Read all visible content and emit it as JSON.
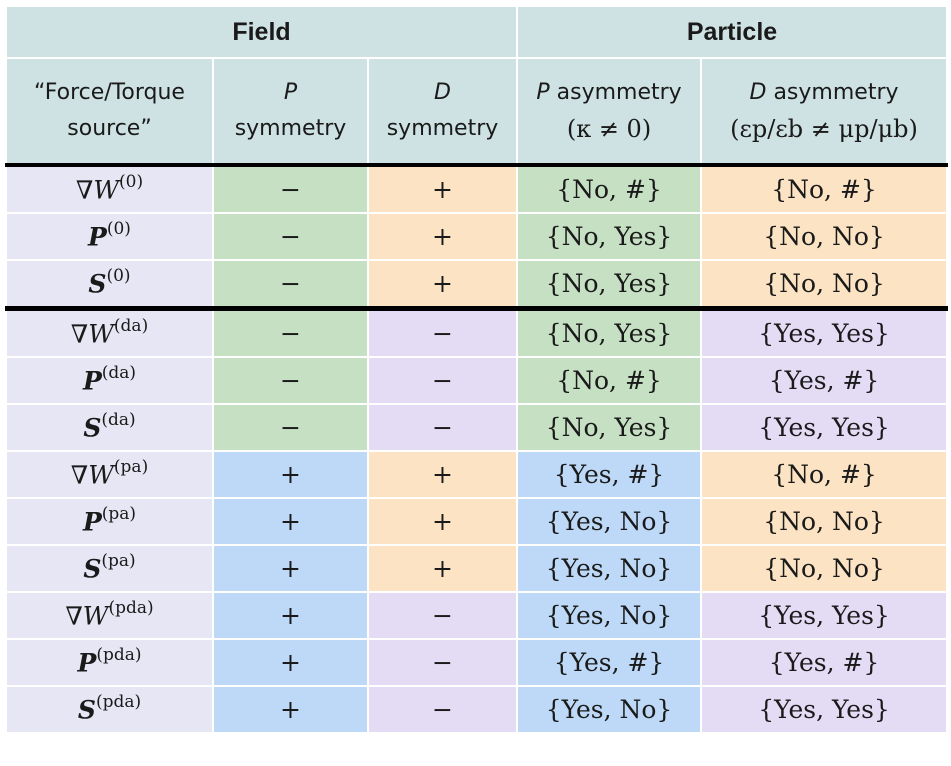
{
  "header_top": {
    "field": "Field",
    "particle": "Particle"
  },
  "header_sub": {
    "source_line1": "“Force/Torque",
    "source_line2": "source”",
    "p_sym_letter": "P",
    "p_sym_word": "symmetry",
    "d_sym_letter": "D",
    "d_sym_word": "symmetry",
    "p_asym_letter": "P",
    "p_asym_word": "asymmetry",
    "p_asym_cond": "(κ ≠ 0)",
    "d_asym_letter": "D",
    "d_asym_word": "asymmetry",
    "d_asym_cond": "(εp/εb ≠ μp/μb)"
  },
  "colors": {
    "header": "#cfe2e3",
    "source_col": "#e6e6f4",
    "green": "#c6e0c4",
    "orange": "#fbe3c3",
    "purple": "#e4dbf5",
    "blue": "#bdd9f7",
    "separator": "#000000"
  },
  "rows": [
    {
      "src_base": "∇W",
      "src_style": "grad",
      "src_sup": "(0)",
      "p_sym": "−",
      "d_sym": "+",
      "p_asym": "{No, #}",
      "d_asym": "{No, #}",
      "c": [
        "green",
        "orange",
        "green",
        "orange"
      ]
    },
    {
      "src_base": "P",
      "src_style": "bold",
      "src_sup": "(0)",
      "p_sym": "−",
      "d_sym": "+",
      "p_asym": "{No, Yes}",
      "d_asym": "{No, No}",
      "c": [
        "green",
        "orange",
        "green",
        "orange"
      ]
    },
    {
      "src_base": "S",
      "src_style": "bold",
      "src_sup": "(0)",
      "p_sym": "−",
      "d_sym": "+",
      "p_asym": "{No, Yes}",
      "d_asym": "{No, No}",
      "c": [
        "green",
        "orange",
        "green",
        "orange"
      ]
    },
    {
      "src_base": "∇W",
      "src_style": "grad",
      "src_sup": "(da)",
      "p_sym": "−",
      "d_sym": "−",
      "p_asym": "{No, Yes}",
      "d_asym": "{Yes, Yes}",
      "c": [
        "green",
        "purple",
        "green",
        "purple"
      ],
      "thick": true
    },
    {
      "src_base": "P",
      "src_style": "bold",
      "src_sup": "(da)",
      "p_sym": "−",
      "d_sym": "−",
      "p_asym": "{No, #}",
      "d_asym": "{Yes, #}",
      "c": [
        "green",
        "purple",
        "green",
        "purple"
      ]
    },
    {
      "src_base": "S",
      "src_style": "bold",
      "src_sup": "(da)",
      "p_sym": "−",
      "d_sym": "−",
      "p_asym": "{No, Yes}",
      "d_asym": "{Yes, Yes}",
      "c": [
        "green",
        "purple",
        "green",
        "purple"
      ]
    },
    {
      "src_base": "∇W",
      "src_style": "grad",
      "src_sup": "(pa)",
      "p_sym": "+",
      "d_sym": "+",
      "p_asym": "{Yes, #}",
      "d_asym": "{No, #}",
      "c": [
        "blue",
        "orange",
        "blue",
        "orange"
      ]
    },
    {
      "src_base": "P",
      "src_style": "bold",
      "src_sup": "(pa)",
      "p_sym": "+",
      "d_sym": "+",
      "p_asym": "{Yes, No}",
      "d_asym": "{No, No}",
      "c": [
        "blue",
        "orange",
        "blue",
        "orange"
      ]
    },
    {
      "src_base": "S",
      "src_style": "bold",
      "src_sup": "(pa)",
      "p_sym": "+",
      "d_sym": "+",
      "p_asym": "{Yes, No}",
      "d_asym": "{No, No}",
      "c": [
        "blue",
        "orange",
        "blue",
        "orange"
      ]
    },
    {
      "src_base": "∇W",
      "src_style": "grad",
      "src_sup": "(pda)",
      "p_sym": "+",
      "d_sym": "−",
      "p_asym": "{Yes, No}",
      "d_asym": "{Yes, Yes}",
      "c": [
        "blue",
        "purple",
        "blue",
        "purple"
      ]
    },
    {
      "src_base": "P",
      "src_style": "bold",
      "src_sup": "(pda)",
      "p_sym": "+",
      "d_sym": "−",
      "p_asym": "{Yes, #}",
      "d_asym": "{Yes, #}",
      "c": [
        "blue",
        "purple",
        "blue",
        "purple"
      ]
    },
    {
      "src_base": "S",
      "src_style": "bold",
      "src_sup": "(pda)",
      "p_sym": "+",
      "d_sym": "−",
      "p_asym": "{Yes, No}",
      "d_asym": "{Yes, Yes}",
      "c": [
        "blue",
        "purple",
        "blue",
        "purple"
      ]
    }
  ]
}
